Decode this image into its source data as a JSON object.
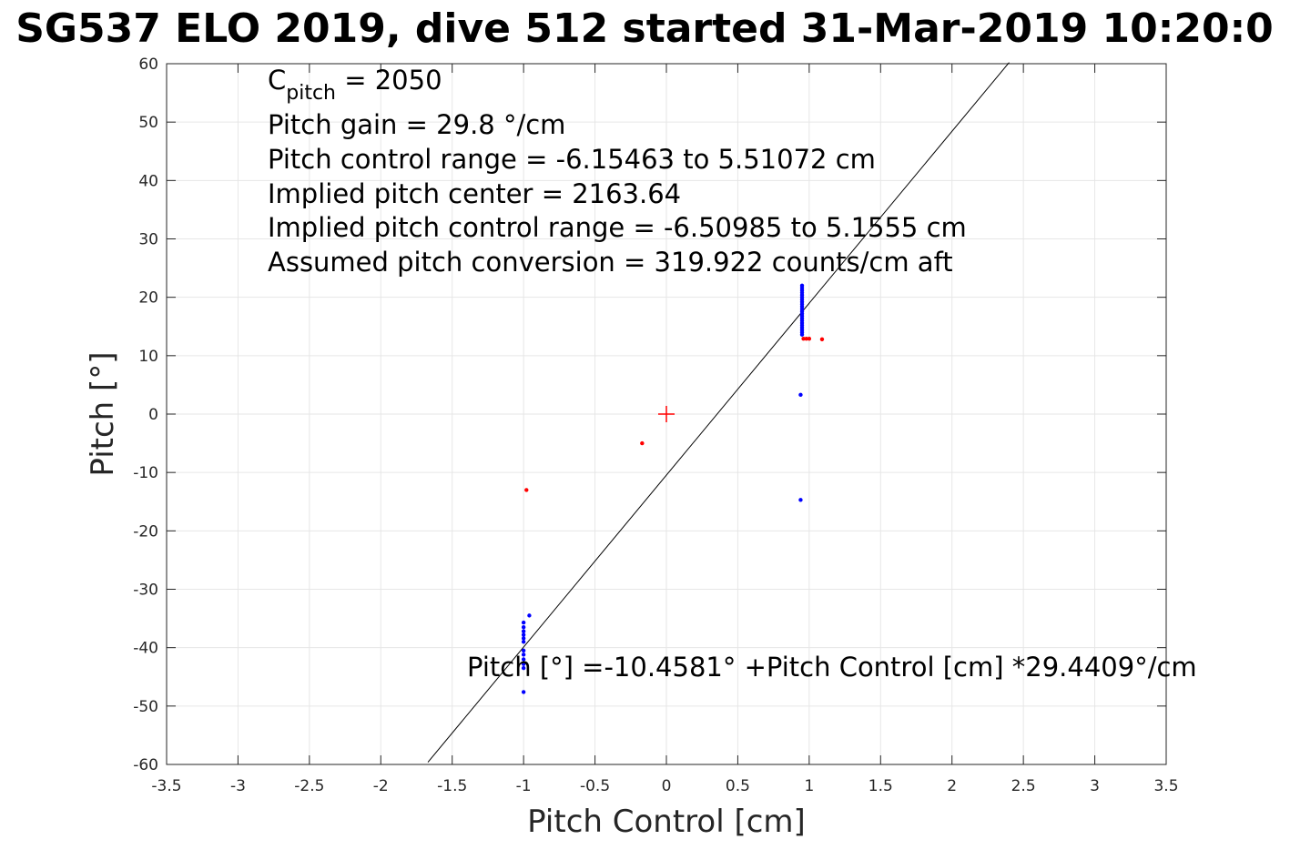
{
  "chart_data": {
    "type": "scatter",
    "title": "SG537 ELO 2019, dive 512 started 31-Mar-2019 10:20:0",
    "xlabel": "Pitch Control [cm]",
    "ylabel": "Pitch [°]",
    "xlim": [
      -3.5,
      3.5
    ],
    "ylim": [
      -60,
      60
    ],
    "x_ticks": [
      -3.5,
      -3,
      -2.5,
      -2,
      -1.5,
      -1,
      -0.5,
      0,
      0.5,
      1,
      1.5,
      2,
      2.5,
      3,
      3.5
    ],
    "x_tick_labels": [
      "-3.5",
      "-3",
      "-2.5",
      "-2",
      "-1.5",
      "-1",
      "-0.5",
      "0",
      "0.5",
      "1",
      "1.5",
      "2",
      "2.5",
      "3",
      "3.5"
    ],
    "y_ticks": [
      -60,
      -50,
      -40,
      -30,
      -20,
      -10,
      0,
      10,
      20,
      30,
      40,
      50,
      60
    ],
    "y_tick_labels": [
      "-60",
      "-50",
      "-40",
      "-30",
      "-20",
      "-10",
      "0",
      "10",
      "20",
      "30",
      "40",
      "50",
      "60"
    ],
    "grid": true,
    "colors": {
      "blue_series": "#0000ff",
      "red_series": "#ff0000",
      "fit_line": "#000000",
      "grid": "#e6e6e6",
      "axes": "#262626"
    },
    "series": [
      {
        "color": "blue",
        "points": [
          [
            0.95,
            22.0
          ],
          [
            0.95,
            21.6
          ],
          [
            0.95,
            21.2
          ],
          [
            0.95,
            20.8
          ],
          [
            0.95,
            20.4
          ],
          [
            0.95,
            20.0
          ],
          [
            0.95,
            19.6
          ],
          [
            0.95,
            19.2
          ],
          [
            0.95,
            18.8
          ],
          [
            0.95,
            18.4
          ],
          [
            0.95,
            18.0
          ],
          [
            0.95,
            17.6
          ],
          [
            0.95,
            17.2
          ],
          [
            0.95,
            16.8
          ],
          [
            0.95,
            16.4
          ],
          [
            0.95,
            16.0
          ],
          [
            0.95,
            15.6
          ],
          [
            0.95,
            15.2
          ],
          [
            0.95,
            14.8
          ],
          [
            0.95,
            14.4
          ],
          [
            0.95,
            14.0
          ],
          [
            0.95,
            13.6
          ],
          [
            0.94,
            3.3
          ],
          [
            0.94,
            -14.7
          ],
          [
            -1.0,
            -35.7
          ],
          [
            -1.0,
            -36.5
          ],
          [
            -1.0,
            -37.2
          ],
          [
            -1.0,
            -37.8
          ],
          [
            -1.0,
            -38.4
          ],
          [
            -1.0,
            -39.0
          ],
          [
            -1.0,
            -40.5
          ],
          [
            -1.0,
            -41.2
          ],
          [
            -1.0,
            -42.0
          ],
          [
            -1.0,
            -42.8
          ],
          [
            -1.0,
            -43.5
          ],
          [
            -1.0,
            -47.6
          ],
          [
            -0.96,
            -34.5
          ]
        ]
      },
      {
        "color": "red",
        "points": [
          [
            0.96,
            12.9
          ],
          [
            0.98,
            12.9
          ],
          [
            1.0,
            12.9
          ],
          [
            1.09,
            12.8
          ],
          [
            -0.17,
            -5.0
          ],
          [
            -0.98,
            -13.0
          ]
        ]
      },
      {
        "color": "red",
        "marker": "plus",
        "points": [
          [
            0.0,
            0.0
          ]
        ]
      }
    ],
    "fit": {
      "intercept": -10.4581,
      "slope": 29.4409,
      "x_range": [
        -1.67,
        2.4
      ]
    },
    "annotations": {
      "cpitch_main": "C",
      "cpitch_sub": "pitch",
      "cpitch_value": " = 2050",
      "lines": [
        "Pitch gain = 29.8 °/cm",
        "Pitch control range = -6.15463 to 5.51072 cm",
        "Implied pitch center = 2163.64",
        "Implied pitch control range = -6.50985 to 5.1555 cm",
        "Assumed pitch conversion = 319.922 counts/cm aft"
      ],
      "fit_equation": "Pitch [°] =-10.4581° +Pitch Control [cm] *29.4409°/cm"
    }
  }
}
